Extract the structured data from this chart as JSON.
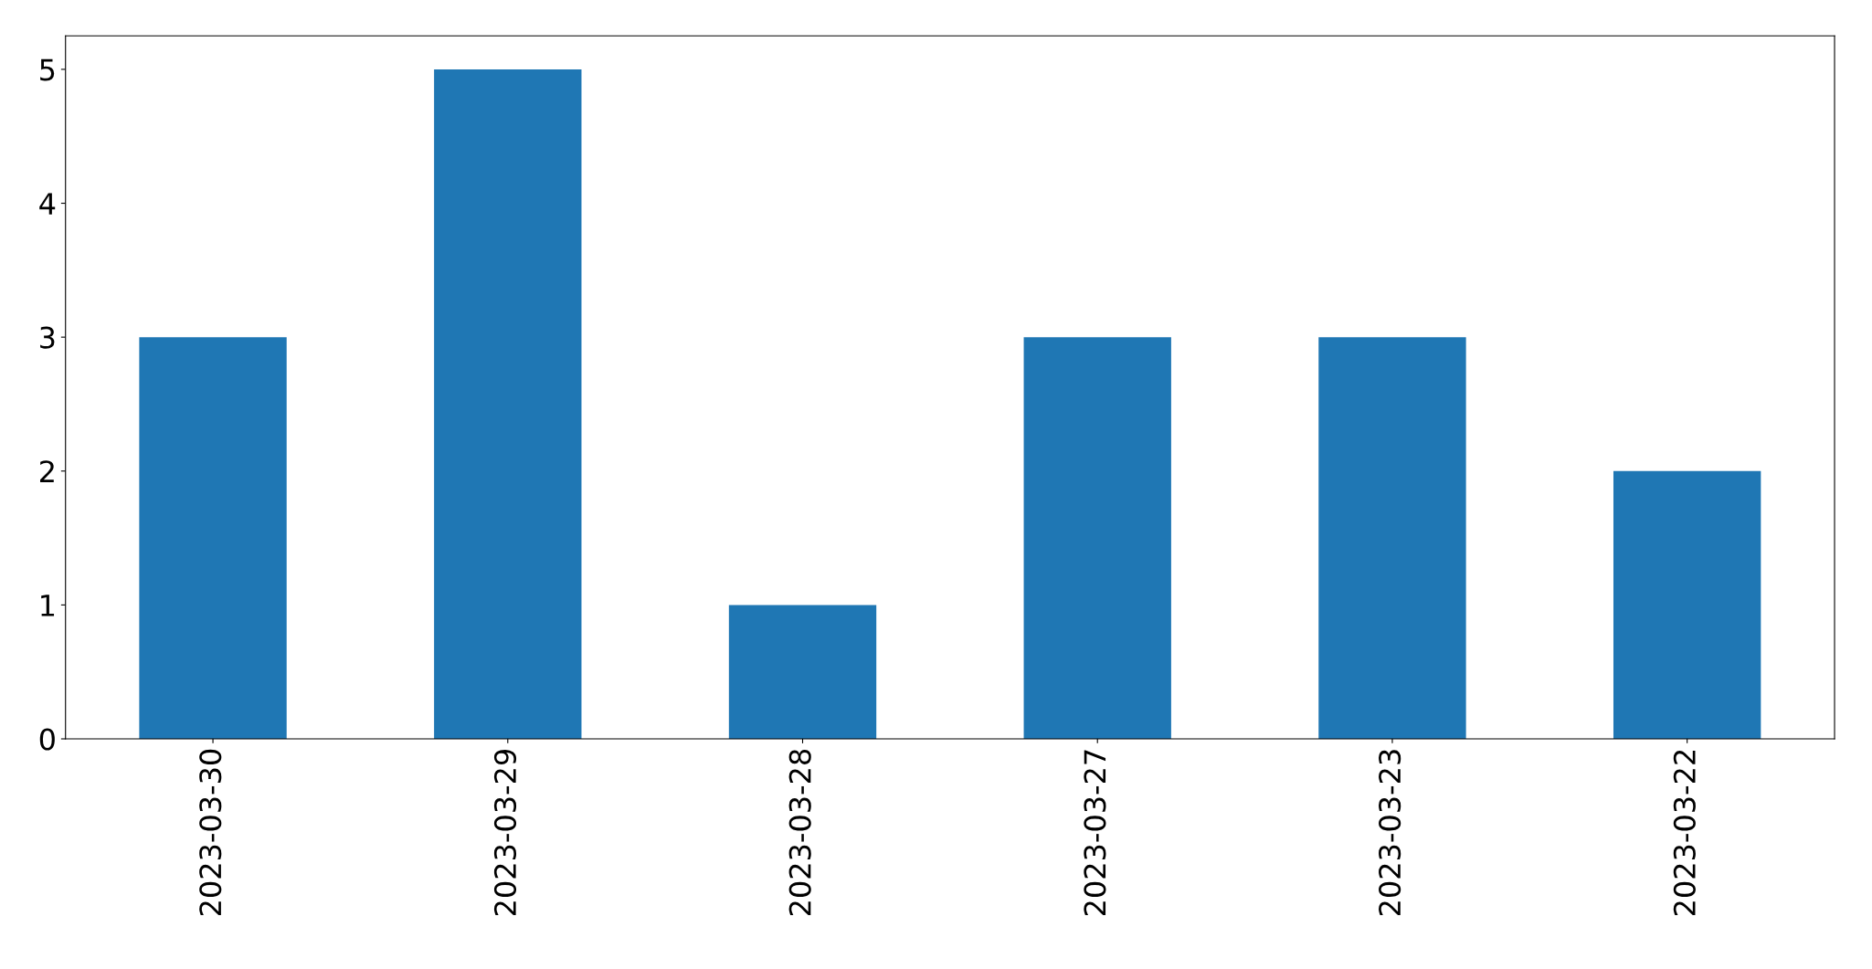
{
  "chart_data": {
    "type": "bar",
    "categories": [
      "2023-03-30",
      "2023-03-29",
      "2023-03-28",
      "2023-03-27",
      "2023-03-23",
      "2023-03-22"
    ],
    "values": [
      3,
      5,
      1,
      3,
      3,
      2
    ],
    "color": "#1f77b4",
    "ylim": [
      0,
      5.25
    ],
    "yticks": [
      0,
      1,
      2,
      3,
      4,
      5
    ],
    "grid": false
  }
}
